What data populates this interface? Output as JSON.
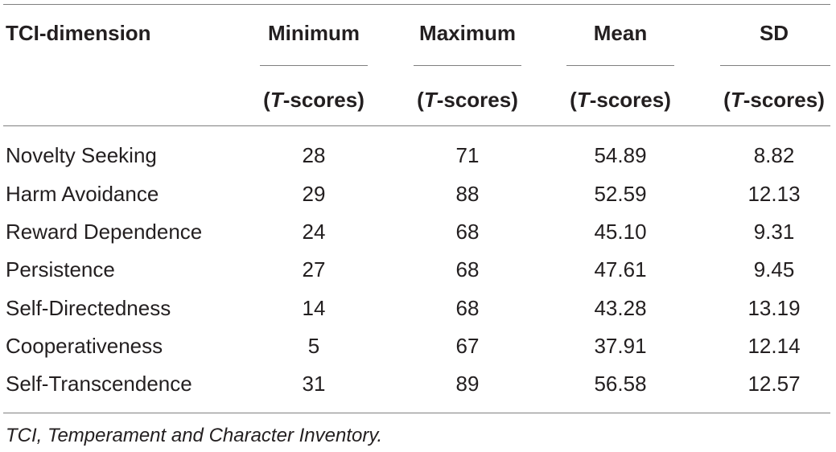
{
  "table": {
    "headers": {
      "dimension": "TCI-dimension",
      "minimum": "Minimum",
      "maximum": "Maximum",
      "mean": "Mean",
      "sd": "SD"
    },
    "subheader": {
      "prefix": "(",
      "italic": "T",
      "suffix": "-scores)"
    },
    "rows": [
      {
        "dimension": "Novelty Seeking",
        "minimum": "28",
        "maximum": "71",
        "mean": "54.89",
        "sd": "8.82"
      },
      {
        "dimension": "Harm Avoidance",
        "minimum": "29",
        "maximum": "88",
        "mean": "52.59",
        "sd": "12.13"
      },
      {
        "dimension": "Reward Dependence",
        "minimum": "24",
        "maximum": "68",
        "mean": "45.10",
        "sd": "9.31"
      },
      {
        "dimension": "Persistence",
        "minimum": "27",
        "maximum": "68",
        "mean": "47.61",
        "sd": "9.45"
      },
      {
        "dimension": "Self-Directedness",
        "minimum": "14",
        "maximum": "68",
        "mean": "43.28",
        "sd": "13.19"
      },
      {
        "dimension": "Cooperativeness",
        "minimum": "5",
        "maximum": "67",
        "mean": "37.91",
        "sd": "12.14"
      },
      {
        "dimension": "Self-Transcendence",
        "minimum": "31",
        "maximum": "89",
        "mean": "56.58",
        "sd": "12.57"
      }
    ],
    "footnote": "TCI, Temperament and Character Inventory."
  }
}
